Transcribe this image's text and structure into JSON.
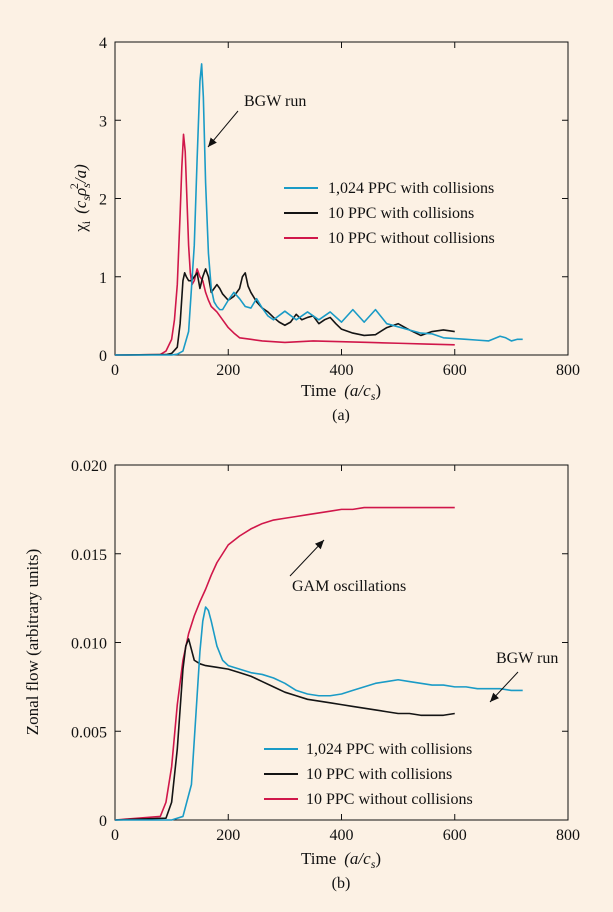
{
  "colors": {
    "background": "#fcf1e4",
    "series_blue": "#1a9bc6",
    "series_black": "#141414",
    "series_red": "#d0174a"
  },
  "chart_data": [
    {
      "id": "a",
      "type": "line",
      "caption": "(a)",
      "xlabel_text": "Time",
      "xlabel_unit": "(a/c",
      "xlabel_unit_sub": "s",
      "xlabel_unit_close": ")",
      "ylabel_symbol": "χ",
      "ylabel_sub": "i",
      "ylabel_unit": "(c",
      "ylabel_unit_sub1": "s",
      "ylabel_unit_rho": "ρ",
      "ylabel_unit_sub2": "s",
      "ylabel_unit_sup": "2",
      "ylabel_unit_close": "/a)",
      "xlim": [
        0,
        800
      ],
      "ylim": [
        0,
        4
      ],
      "xticks": [
        0,
        200,
        400,
        600,
        800
      ],
      "yticks": [
        0,
        1,
        2,
        3,
        4
      ],
      "xtick_labels": [
        "0",
        "200",
        "400",
        "600",
        "800"
      ],
      "ytick_labels": [
        "0",
        "1",
        "2",
        "3",
        "4"
      ],
      "grid": false,
      "legend_position": "right-middle",
      "annotation": {
        "text": "BGW run",
        "arrow_to": [
          153,
          3.0
        ]
      },
      "series": [
        {
          "name": "1,024 PPC with collisions",
          "color": "#1a9bc6",
          "x": [
            0,
            100,
            110,
            120,
            130,
            140,
            145,
            150,
            153,
            156,
            160,
            165,
            170,
            175,
            180,
            185,
            190,
            200,
            210,
            220,
            230,
            240,
            250,
            260,
            270,
            280,
            300,
            320,
            340,
            360,
            380,
            400,
            420,
            440,
            460,
            480,
            500,
            520,
            540,
            560,
            580,
            600,
            620,
            640,
            660,
            680,
            690,
            700,
            710,
            720
          ],
          "y": [
            0,
            0,
            0.01,
            0.05,
            0.3,
            1.4,
            2.5,
            3.5,
            3.72,
            3.3,
            2.2,
            1.3,
            0.85,
            0.68,
            0.62,
            0.58,
            0.58,
            0.7,
            0.8,
            0.72,
            0.62,
            0.6,
            0.72,
            0.6,
            0.5,
            0.45,
            0.56,
            0.45,
            0.55,
            0.45,
            0.55,
            0.42,
            0.58,
            0.42,
            0.58,
            0.4,
            0.36,
            0.32,
            0.28,
            0.27,
            0.22,
            0.21,
            0.2,
            0.19,
            0.18,
            0.24,
            0.22,
            0.18,
            0.2,
            0.2
          ]
        },
        {
          "name": "10 PPC with collisions",
          "color": "#141414",
          "x": [
            0,
            90,
            100,
            110,
            115,
            120,
            123,
            126,
            130,
            135,
            140,
            145,
            150,
            155,
            160,
            165,
            170,
            175,
            180,
            185,
            190,
            200,
            210,
            220,
            225,
            230,
            235,
            240,
            250,
            260,
            270,
            280,
            290,
            300,
            310,
            320,
            330,
            340,
            350,
            360,
            370,
            380,
            390,
            400,
            420,
            440,
            460,
            480,
            500,
            520,
            540,
            560,
            580,
            600
          ],
          "y": [
            0,
            0.005,
            0.02,
            0.1,
            0.4,
            0.95,
            1.05,
            1.0,
            0.95,
            0.95,
            1.0,
            1.05,
            0.85,
            1.0,
            1.1,
            1.0,
            0.8,
            0.85,
            0.9,
            0.85,
            0.78,
            0.7,
            0.75,
            0.85,
            1.0,
            1.05,
            0.88,
            0.8,
            0.68,
            0.6,
            0.55,
            0.48,
            0.42,
            0.38,
            0.42,
            0.52,
            0.45,
            0.48,
            0.5,
            0.4,
            0.45,
            0.48,
            0.4,
            0.33,
            0.28,
            0.25,
            0.26,
            0.35,
            0.4,
            0.32,
            0.25,
            0.3,
            0.32,
            0.3
          ]
        },
        {
          "name": "10 PPC without collisions",
          "color": "#d0174a",
          "x": [
            0,
            80,
            90,
            100,
            105,
            110,
            115,
            118,
            121,
            124,
            127,
            130,
            133,
            136,
            140,
            145,
            150,
            155,
            160,
            165,
            170,
            180,
            190,
            200,
            210,
            220,
            240,
            260,
            300,
            350,
            400,
            450,
            500,
            550,
            600
          ],
          "y": [
            0,
            0.005,
            0.05,
            0.2,
            0.45,
            0.9,
            1.8,
            2.4,
            2.82,
            2.6,
            2.0,
            1.4,
            1.05,
            0.9,
            0.95,
            1.1,
            1.0,
            0.95,
            0.8,
            0.7,
            0.62,
            0.55,
            0.45,
            0.35,
            0.28,
            0.22,
            0.2,
            0.18,
            0.16,
            0.18,
            0.17,
            0.16,
            0.15,
            0.14,
            0.13
          ]
        }
      ]
    },
    {
      "id": "b",
      "type": "line",
      "caption": "(b)",
      "xlabel_text": "Time",
      "xlabel_unit": "(a/c",
      "xlabel_unit_sub": "s",
      "xlabel_unit_close": ")",
      "ylabel": "Zonal flow  (arbitrary units)",
      "xlim": [
        0,
        800
      ],
      "ylim": [
        0,
        0.02
      ],
      "xticks": [
        0,
        200,
        400,
        600,
        800
      ],
      "yticks": [
        0,
        0.005,
        0.01,
        0.015,
        0.02
      ],
      "xtick_labels": [
        "0",
        "200",
        "400",
        "600",
        "800"
      ],
      "ytick_labels": [
        "0",
        "0.005",
        "0.010",
        "0.015",
        "0.020"
      ],
      "grid": false,
      "legend_position": "bottom-right",
      "annotations": [
        {
          "text": "GAM oscillations",
          "arrow_to": [
            370,
            0.0173
          ]
        },
        {
          "text": "BGW run",
          "arrow_to": [
            490,
            0.0079
          ]
        }
      ],
      "series": [
        {
          "name": "1,024 PPC with collisions",
          "color": "#1a9bc6",
          "x": [
            0,
            100,
            120,
            135,
            145,
            150,
            155,
            160,
            165,
            170,
            175,
            180,
            190,
            200,
            220,
            240,
            260,
            280,
            300,
            320,
            340,
            360,
            380,
            400,
            420,
            440,
            460,
            480,
            500,
            520,
            540,
            560,
            580,
            600,
            620,
            640,
            660,
            680,
            700,
            720
          ],
          "y": [
            0,
            0,
            0.0002,
            0.002,
            0.007,
            0.0095,
            0.0112,
            0.012,
            0.0118,
            0.0112,
            0.0105,
            0.0098,
            0.009,
            0.0087,
            0.0085,
            0.0083,
            0.0082,
            0.008,
            0.0077,
            0.0073,
            0.0071,
            0.007,
            0.007,
            0.0071,
            0.0073,
            0.0075,
            0.0077,
            0.0078,
            0.0079,
            0.0078,
            0.0077,
            0.0076,
            0.0076,
            0.0075,
            0.0075,
            0.0074,
            0.0074,
            0.0074,
            0.0073,
            0.0073
          ]
        },
        {
          "name": "10 PPC with collisions",
          "color": "#141414",
          "x": [
            0,
            90,
            100,
            110,
            120,
            125,
            130,
            135,
            140,
            150,
            160,
            180,
            200,
            220,
            240,
            260,
            280,
            300,
            320,
            340,
            360,
            380,
            400,
            420,
            440,
            460,
            480,
            500,
            520,
            540,
            560,
            580,
            600
          ],
          "y": [
            0,
            0.0001,
            0.001,
            0.004,
            0.0085,
            0.0098,
            0.0102,
            0.0096,
            0.009,
            0.0088,
            0.0087,
            0.0086,
            0.0085,
            0.0083,
            0.0081,
            0.0078,
            0.0075,
            0.0072,
            0.007,
            0.0068,
            0.0067,
            0.0066,
            0.0065,
            0.0064,
            0.0063,
            0.0062,
            0.0061,
            0.006,
            0.006,
            0.0059,
            0.0059,
            0.0059,
            0.006
          ]
        },
        {
          "name": "10 PPC without collisions",
          "color": "#d0174a",
          "x": [
            0,
            80,
            90,
            100,
            110,
            120,
            130,
            140,
            150,
            160,
            170,
            180,
            190,
            200,
            220,
            240,
            260,
            280,
            300,
            320,
            340,
            360,
            380,
            400,
            420,
            440,
            460,
            480,
            500,
            520,
            540,
            560,
            580,
            600
          ],
          "y": [
            0,
            0.0002,
            0.001,
            0.003,
            0.0065,
            0.009,
            0.0105,
            0.0115,
            0.0123,
            0.013,
            0.0138,
            0.0145,
            0.015,
            0.0155,
            0.016,
            0.0164,
            0.0167,
            0.0169,
            0.017,
            0.0171,
            0.0172,
            0.0173,
            0.0174,
            0.0175,
            0.0175,
            0.0176,
            0.0176,
            0.0176,
            0.0176,
            0.0176,
            0.0176,
            0.0176,
            0.0176,
            0.0176
          ]
        }
      ]
    }
  ]
}
